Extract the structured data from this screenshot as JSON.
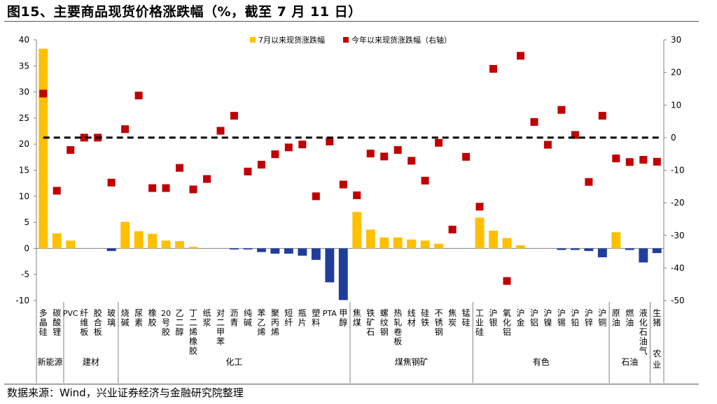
{
  "title": "图15、主要商品现货价格涨跌幅（%，截至 7 月 11 日）",
  "source": "数据来源：Wind，兴业证券经济与金融研究院整理",
  "chart_data": {
    "type": "bar",
    "legend_position": "top",
    "grid": false,
    "categories": [
      "多晶硅",
      "碳酸锂",
      "PVC",
      "纤维板",
      "胶合板",
      "玻璃",
      "烧碱",
      "尿素",
      "橡胶",
      "20号胶",
      "乙二醇",
      "丁二烯橡胶",
      "纸浆",
      "对二甲苯",
      "沥青",
      "纯碱",
      "苯乙烯",
      "聚丙烯",
      "短纤",
      "瓶片",
      "塑料",
      "PTA",
      "甲醇",
      "焦煤",
      "铁矿石",
      "螺纹钢",
      "热轧卷板",
      "线材",
      "硅铁",
      "不锈钢",
      "焦炭",
      "锰硅",
      "工业硅",
      "沪银",
      "氧化铝",
      "沪金",
      "沪铝",
      "沪镍",
      "沪锡",
      "沪铅",
      "沪锌",
      "沪铜",
      "原油",
      "燃油",
      "液化石油气",
      "生猪"
    ],
    "category_labels": [
      [
        "多",
        "晶",
        "硅"
      ],
      [
        "碳",
        "酸",
        "锂"
      ],
      [
        "PVC"
      ],
      [
        "纤",
        "维",
        "板"
      ],
      [
        "胶",
        "合",
        "板"
      ],
      [
        "玻",
        "璃"
      ],
      [
        "烧",
        "碱"
      ],
      [
        "尿",
        "素"
      ],
      [
        "橡",
        "胶"
      ],
      [
        "20",
        "号",
        "胶"
      ],
      [
        "乙",
        "二",
        "醇"
      ],
      [
        "丁",
        "二",
        "烯",
        "橡",
        "胶"
      ],
      [
        "纸",
        "浆"
      ],
      [
        "对",
        "二",
        "甲",
        "苯"
      ],
      [
        "沥",
        "青"
      ],
      [
        "纯",
        "碱"
      ],
      [
        "苯",
        "乙",
        "烯"
      ],
      [
        "聚",
        "丙",
        "烯"
      ],
      [
        "短",
        "纤"
      ],
      [
        "瓶",
        "片"
      ],
      [
        "塑",
        "料"
      ],
      [
        "PTA"
      ],
      [
        "甲",
        "醇"
      ],
      [
        "焦",
        "煤"
      ],
      [
        "铁",
        "矿",
        "石"
      ],
      [
        "螺",
        "纹",
        "钢"
      ],
      [
        "热",
        "轧",
        "卷",
        "板"
      ],
      [
        "线",
        "材"
      ],
      [
        "硅",
        "铁"
      ],
      [
        "不",
        "锈",
        "钢"
      ],
      [
        "焦",
        "炭"
      ],
      [
        "锰",
        "硅"
      ],
      [
        "工",
        "业",
        "硅"
      ],
      [
        "沪",
        "银"
      ],
      [
        "氧",
        "化",
        "铝"
      ],
      [
        "沪",
        "金"
      ],
      [
        "沪",
        "铝"
      ],
      [
        "沪",
        "镍"
      ],
      [
        "沪",
        "锡"
      ],
      [
        "沪",
        "铅"
      ],
      [
        "沪",
        "锌"
      ],
      [
        "沪",
        "铜"
      ],
      [
        "原",
        "油"
      ],
      [
        "燃",
        "油"
      ],
      [
        "液",
        "化",
        "石",
        "油",
        "气"
      ],
      [
        "生",
        "猪"
      ]
    ],
    "groups": [
      {
        "name": "新能源",
        "label": [
          "新能源"
        ],
        "start": 0,
        "end": 1
      },
      {
        "name": "建材",
        "label": [
          "建材"
        ],
        "start": 2,
        "end": 5
      },
      {
        "name": "化工",
        "label": [
          "化工"
        ],
        "start": 6,
        "end": 22
      },
      {
        "name": "煤焦钢矿",
        "label": [
          "煤焦钢矿"
        ],
        "start": 23,
        "end": 31
      },
      {
        "name": "有色",
        "label": [
          "有色"
        ],
        "start": 32,
        "end": 41
      },
      {
        "name": "石油",
        "label": [
          "石油"
        ],
        "start": 42,
        "end": 44
      },
      {
        "name": "农业",
        "label": [
          "农",
          "业"
        ],
        "start": 45,
        "end": 45
      }
    ],
    "series": [
      {
        "name": "7月以来现货涨跌幅",
        "type": "bar",
        "axis": "left",
        "color_pos": "#FFC000",
        "color_neg": "#1F3E9C",
        "values": [
          38.3,
          2.9,
          1.5,
          0,
          0,
          -0.5,
          5.1,
          3.3,
          2.8,
          1.5,
          1.4,
          0.3,
          0,
          0,
          -0.2,
          -0.2,
          -0.7,
          -1.0,
          -1.0,
          -1.4,
          -2.2,
          -6.5,
          -9.9,
          7.0,
          3.6,
          2.1,
          2.1,
          1.7,
          1.5,
          0.9,
          0,
          0,
          5.9,
          3.4,
          2.0,
          0.6,
          0,
          0,
          -0.3,
          -0.3,
          -0.5,
          -1.7,
          3.1,
          -0.3,
          -2.7,
          -0.9
        ]
      },
      {
        "name": "今年以来现货涨跌幅（右轴）",
        "type": "scatter",
        "axis": "right",
        "color": "#C00000",
        "values": [
          13.5,
          -16.3,
          -3.8,
          0,
          0,
          -13.8,
          2.6,
          12.9,
          -15.5,
          -15.5,
          -9.3,
          -15.9,
          -12.7,
          2.1,
          6.7,
          -10.4,
          -8.3,
          -5.1,
          -3.0,
          -2.1,
          -18.0,
          -1.2,
          -14.4,
          -17.7,
          -4.9,
          -5.8,
          -3.8,
          -7.1,
          -13.2,
          -1.6,
          -28.2,
          -5.9,
          -21.2,
          21.1,
          -44.0,
          25.1,
          4.8,
          -2.2,
          8.5,
          0.8,
          -13.6,
          6.7,
          -6.4,
          -7.5,
          -6.8,
          -7.4
        ]
      }
    ],
    "y_left": {
      "min": -10,
      "max": 40,
      "ticks": [
        -10,
        -5,
        0,
        5,
        10,
        15,
        20,
        25,
        30,
        35,
        40
      ]
    },
    "y_right": {
      "min": -50,
      "max": 30,
      "ticks": [
        -50,
        -40,
        -30,
        -20,
        -10,
        0,
        10,
        20,
        30
      ]
    },
    "reference_line": {
      "axis": "right",
      "value": 0,
      "style": "dashed"
    }
  }
}
